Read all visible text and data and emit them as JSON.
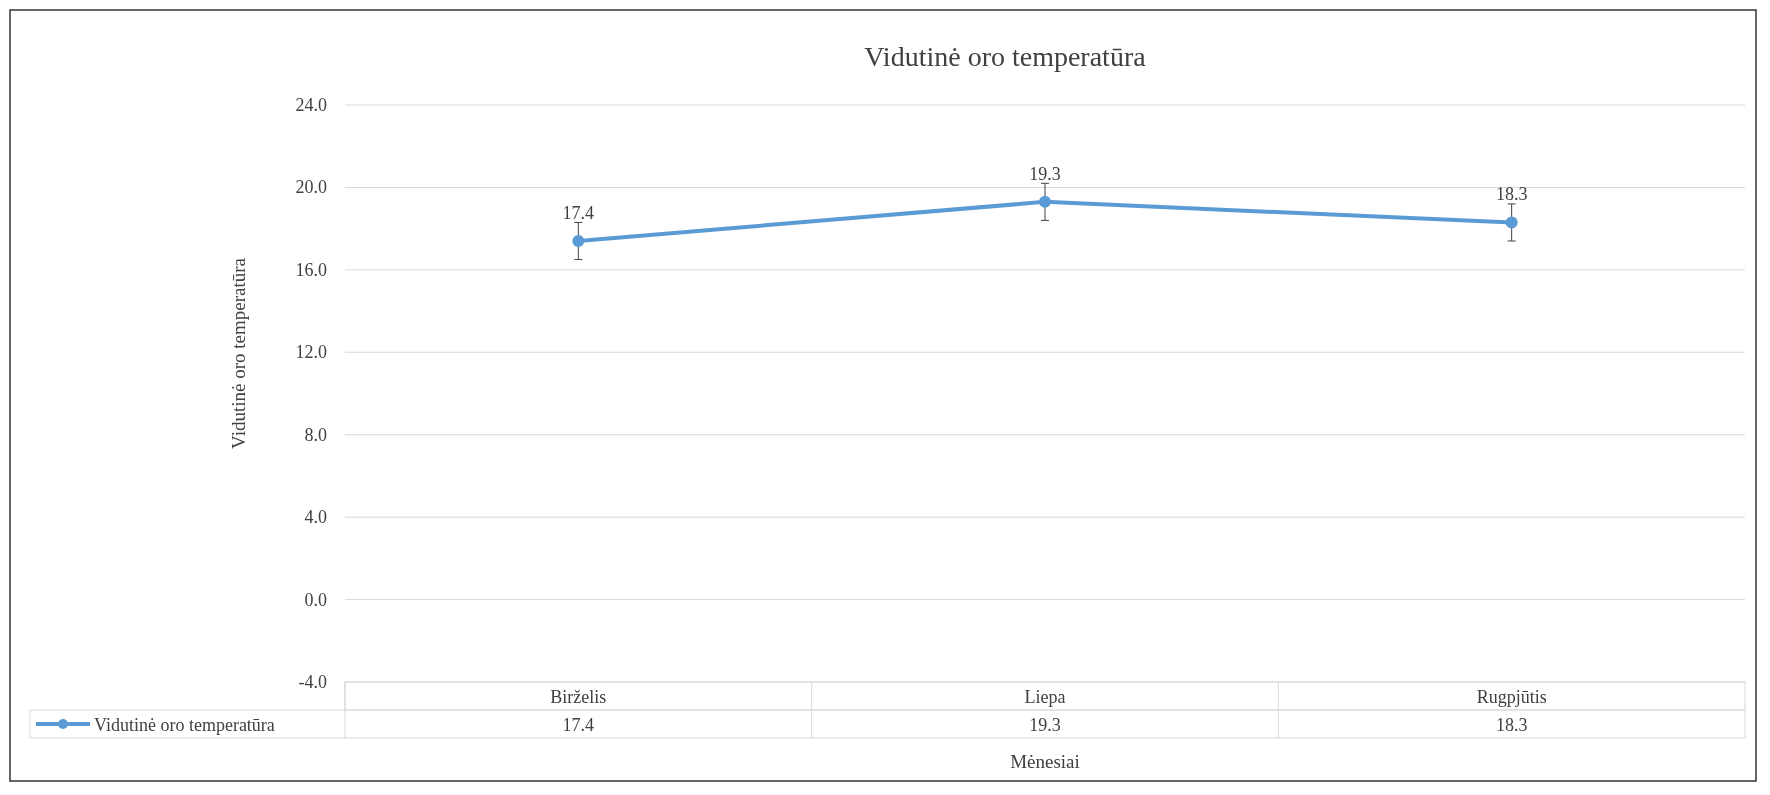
{
  "chart_data": {
    "type": "line",
    "title": "Vidutinė oro temperatūra",
    "xlabel": "Mėnesiai",
    "ylabel": "Vidutinė oro temperatūra",
    "categories": [
      "Birželis",
      "Liepa",
      "Rugpjūtis"
    ],
    "series": [
      {
        "name": "Vidutinė oro temperatūra",
        "color": "#5b9bd5",
        "values": [
          17.4,
          19.3,
          18.3
        ],
        "value_labels": [
          "17.4",
          "19.3",
          "18.3"
        ],
        "errors": [
          0.9,
          0.9,
          0.9
        ]
      }
    ],
    "ylim": [
      -4,
      24
    ],
    "yticks": [
      {
        "value": -4,
        "label": "-4.0"
      },
      {
        "value": 0,
        "label": "0.0"
      },
      {
        "value": 4,
        "label": "4.0"
      },
      {
        "value": 8,
        "label": "8.0"
      },
      {
        "value": 12,
        "label": "12.0"
      },
      {
        "value": 16,
        "label": "16.0"
      },
      {
        "value": 20,
        "label": "20.0"
      },
      {
        "value": 24,
        "label": "24.0"
      }
    ],
    "annotations": [
      "17.4",
      "19.3",
      "18.3"
    ],
    "grid": "y",
    "data_labels": true,
    "legend": "bottom",
    "marker": "circle",
    "line_style": "solid"
  }
}
